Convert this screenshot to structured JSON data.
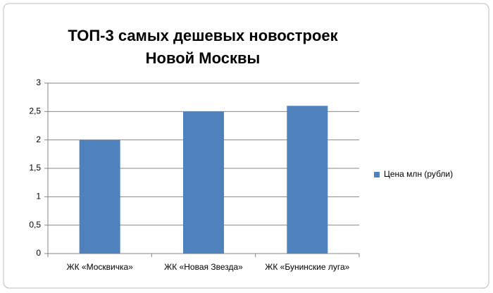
{
  "chart_data": {
    "type": "bar",
    "title": [
      "ТОП-3 самых дешевых новостроек",
      "Новой Москвы"
    ],
    "categories": [
      "ЖК «Москвичка»",
      "ЖК «Новая Звезда»",
      "ЖК «Бунинские луга»"
    ],
    "series": [
      {
        "name": "Цена млн (рубли)",
        "color": "#4f81bd",
        "values": [
          2,
          2.5,
          2.6
        ]
      }
    ],
    "ylim": [
      0,
      3
    ],
    "yticks": [
      0,
      {
        "value": 0.5,
        "label": "0,5"
      },
      1,
      {
        "value": 1.5,
        "label": "1,5"
      },
      2,
      {
        "value": 2.5,
        "label": "2,5"
      },
      3
    ],
    "grid": true,
    "legend": "right"
  }
}
